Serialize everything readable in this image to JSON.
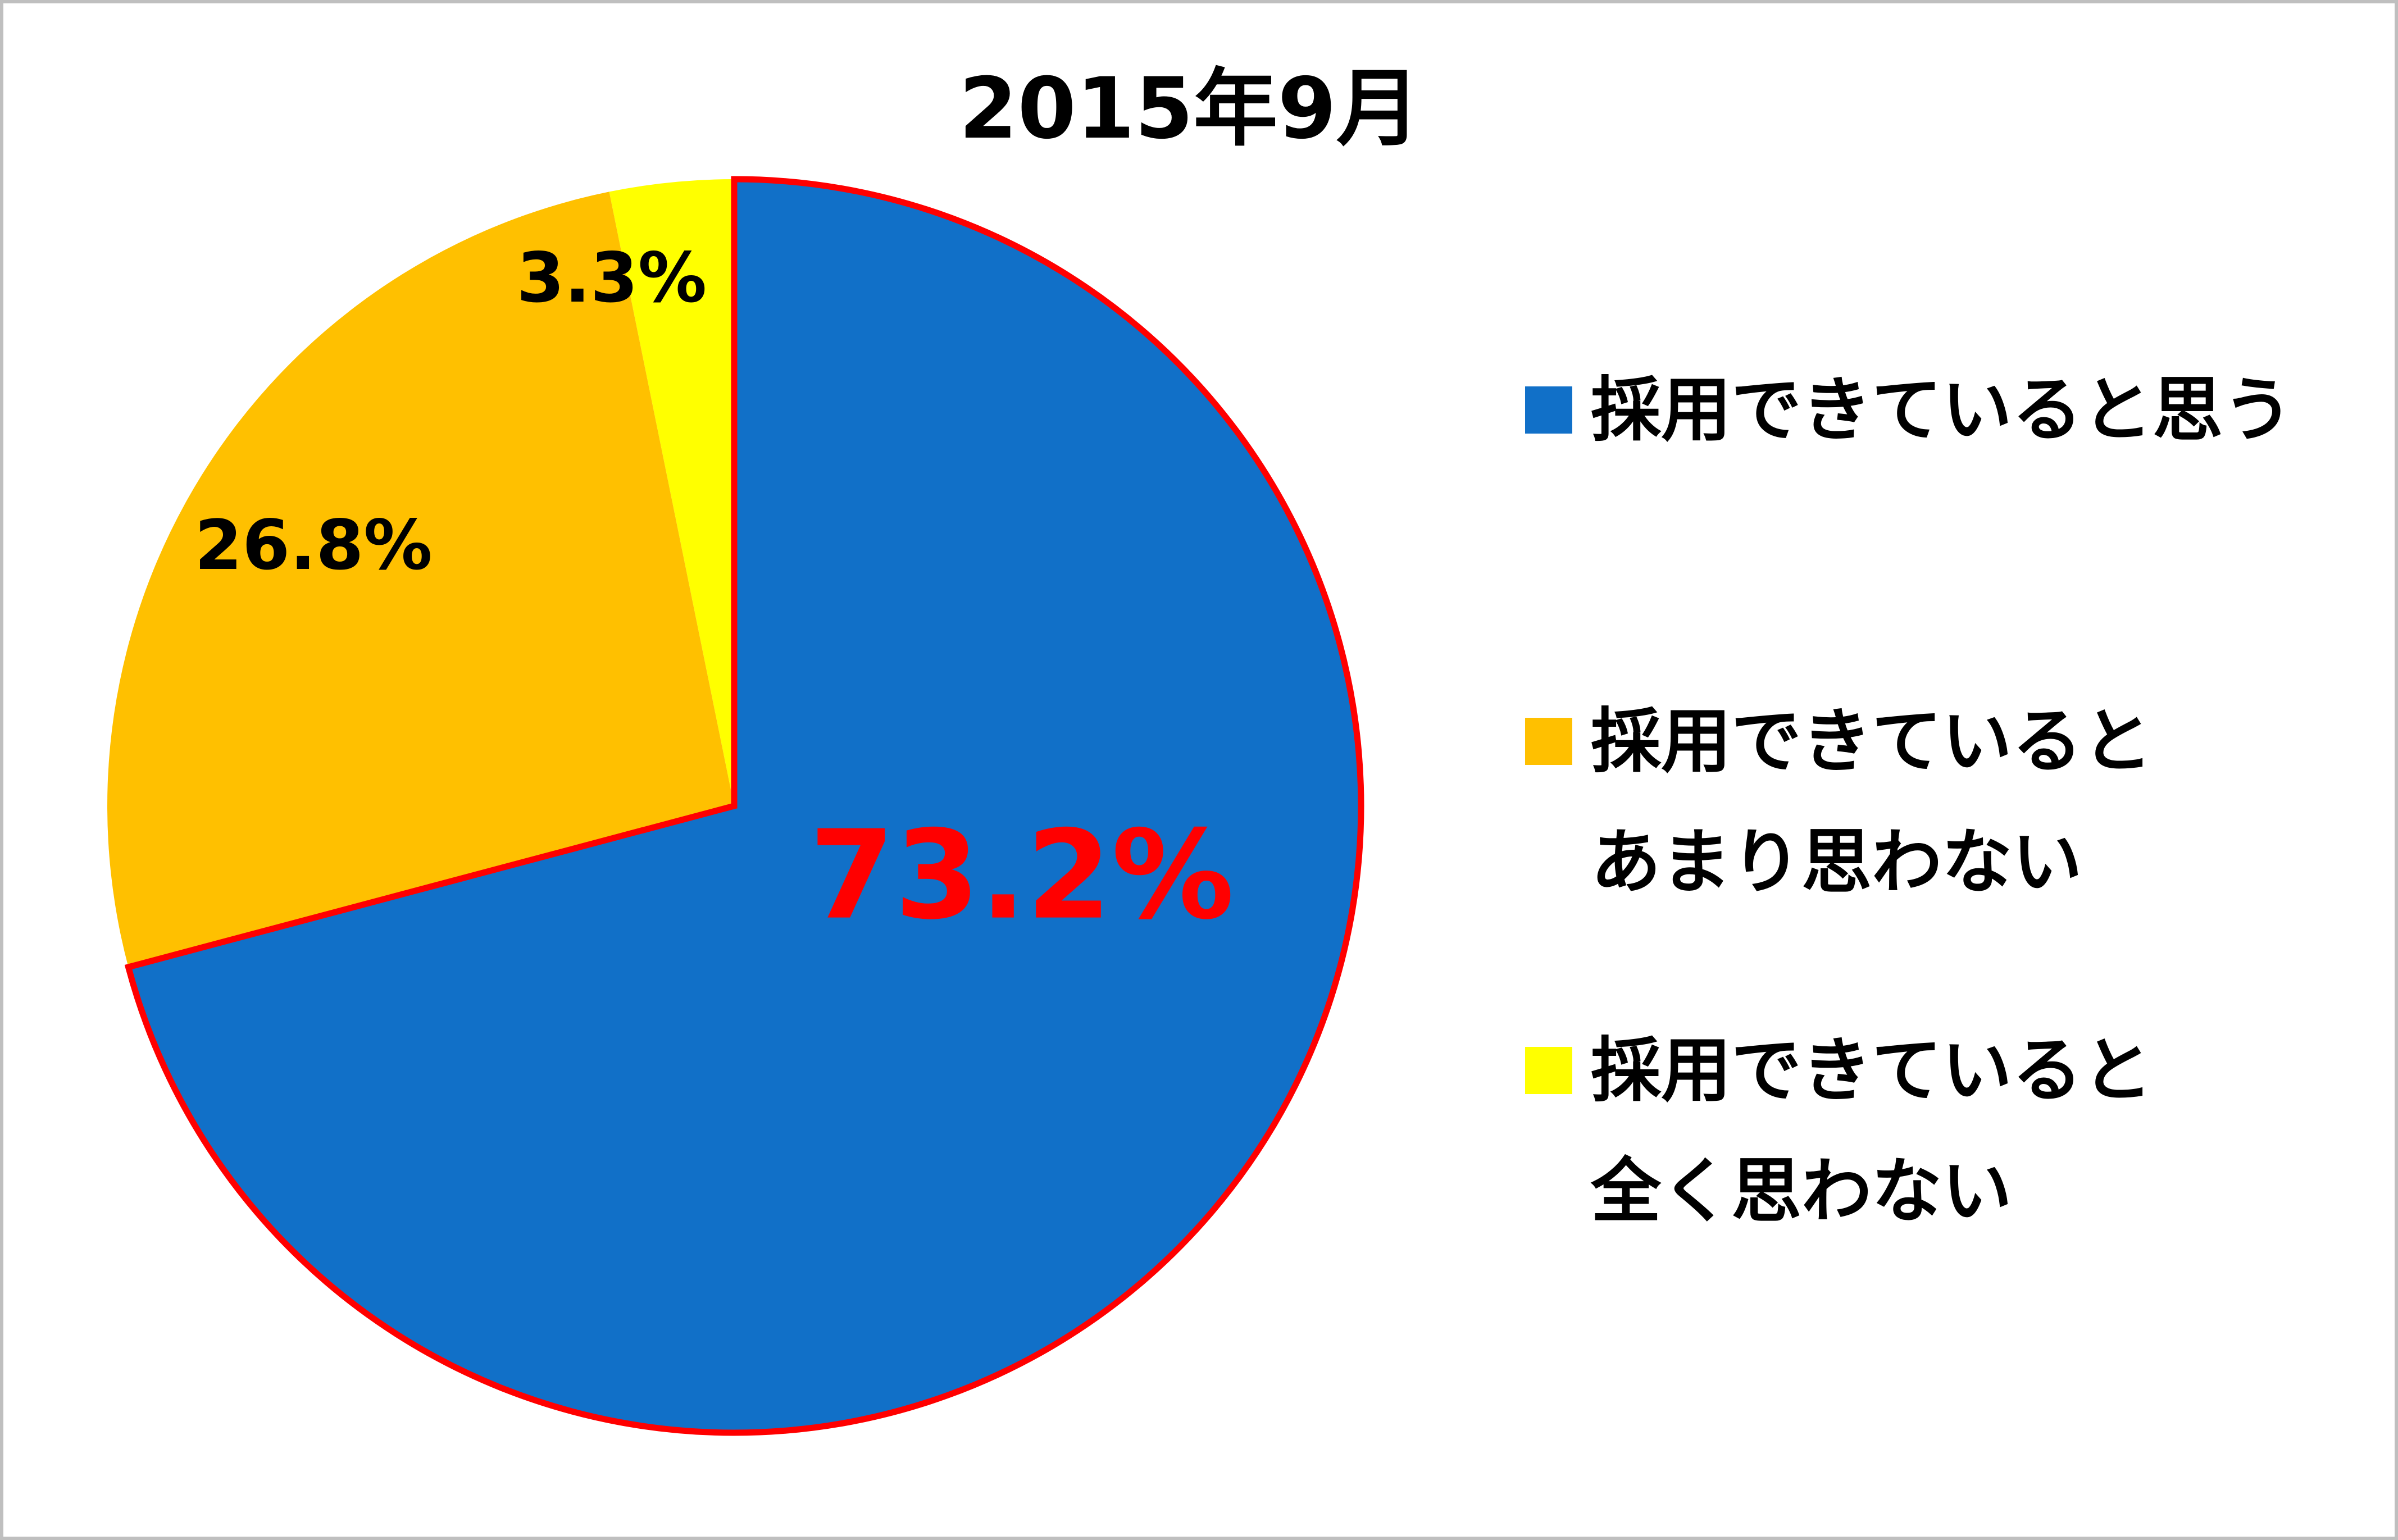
{
  "chart_data": {
    "type": "pie",
    "title": "2015年9月",
    "categories": [
      "採用できていると思う",
      "採用できていると\nあまり思わない",
      "採用できていると\n全く思わない"
    ],
    "values": [
      73.2,
      26.8,
      3.3
    ],
    "value_labels": [
      "73.2%",
      "26.8%",
      "3.3%"
    ],
    "colors": [
      "#1170c8",
      "#ffc000",
      "#ffff00"
    ],
    "label_colors": [
      "#ff0000",
      "#000000",
      "#000000"
    ],
    "highlight_color": "#ff0000",
    "legend": "right"
  }
}
